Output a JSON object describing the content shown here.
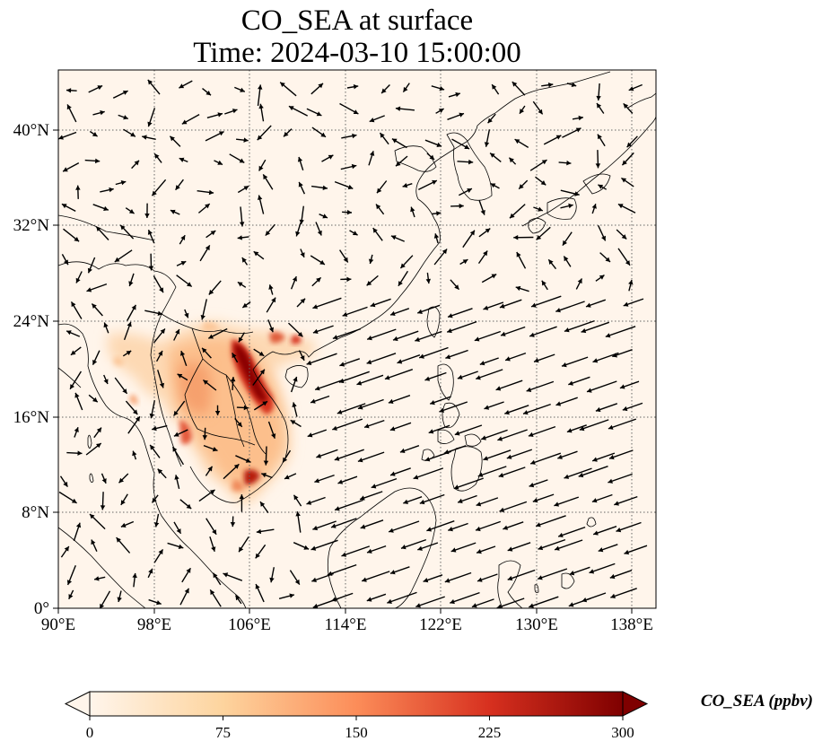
{
  "title": {
    "line1": "CO_SEA at surface",
    "line2": "Time: 2024-03-10 15:00:00"
  },
  "map": {
    "lon_range": [
      90,
      140
    ],
    "lat_range": [
      0,
      45
    ],
    "x_ticks": [
      "90°E",
      "98°E",
      "106°E",
      "114°E",
      "122°E",
      "130°E",
      "138°E"
    ],
    "y_ticks": [
      "0°",
      "8°N",
      "16°N",
      "24°N",
      "32°N",
      "40°N"
    ],
    "gridlines": "dotted",
    "background_color": "#fff5eb",
    "high_concentration_color": "#7f0000",
    "wind_vectors": "shown"
  },
  "colorbar": {
    "label": "CO_SEA (ppbv)",
    "ticks": [
      "0",
      "75",
      "150",
      "225",
      "300"
    ],
    "min": 0,
    "max": 300,
    "extend": "both",
    "colormap": "OrRd",
    "colors": [
      "#fff5eb",
      "#fdd49e",
      "#fc8d59",
      "#d7301f",
      "#7f0000"
    ]
  }
}
